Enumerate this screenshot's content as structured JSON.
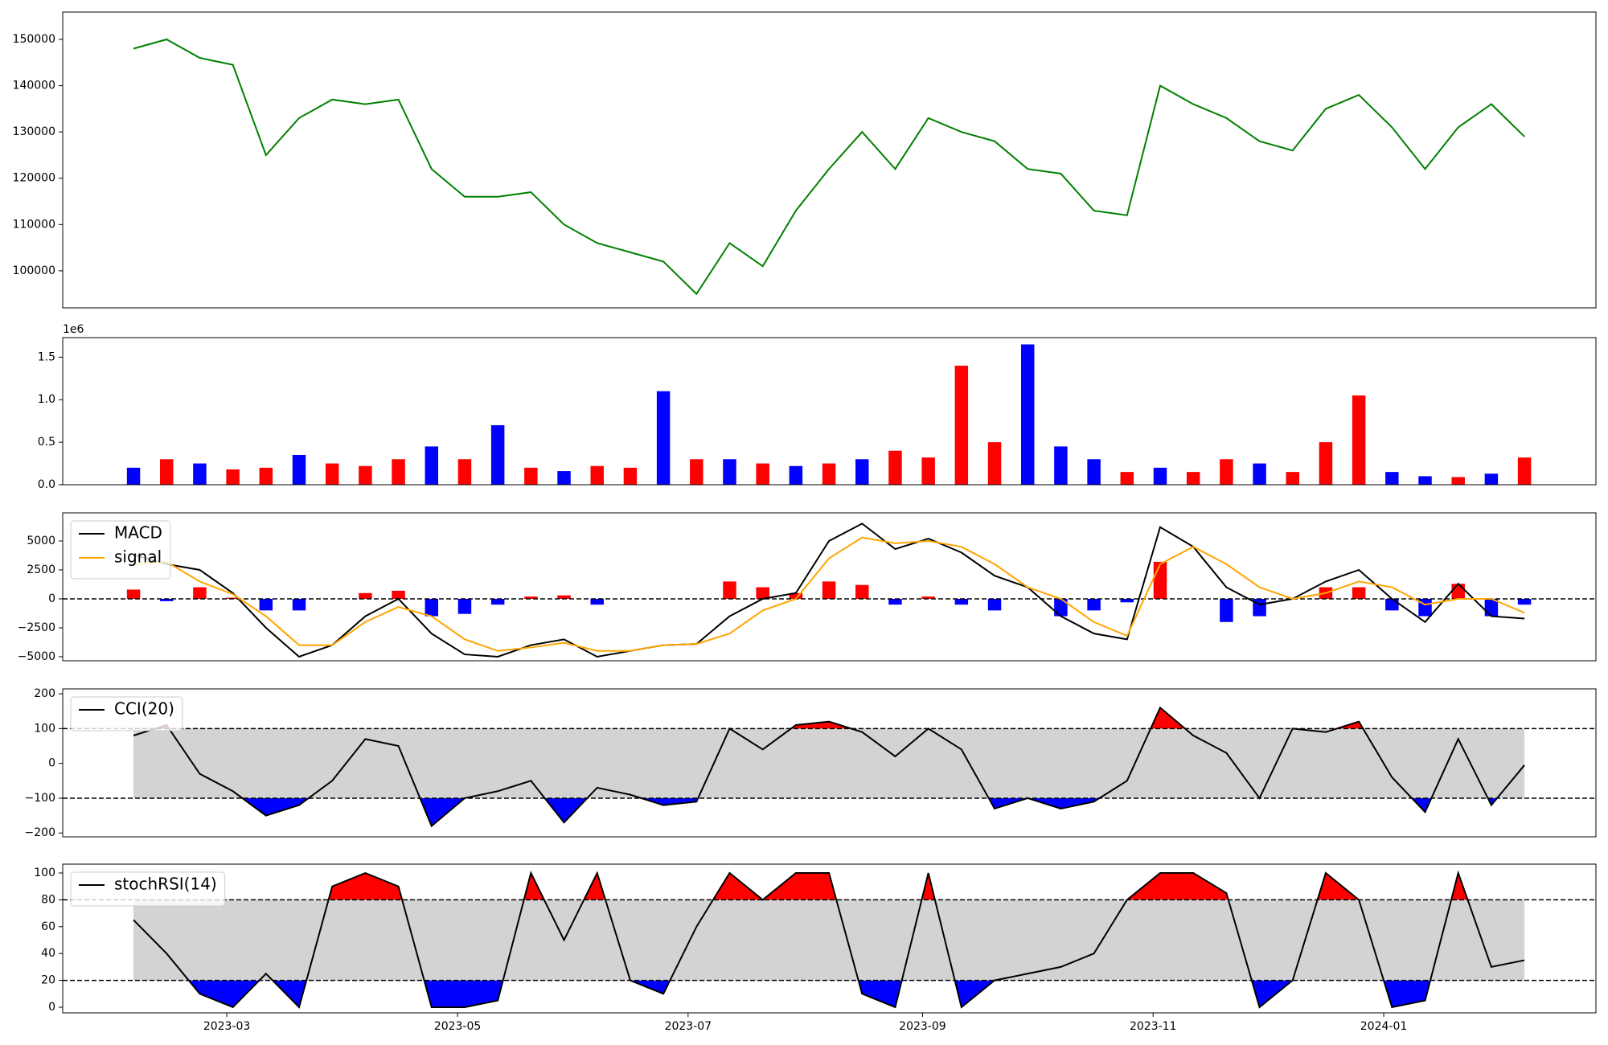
{
  "chart_data": [
    {
      "type": "line",
      "x": [
        2023.094,
        2023.118,
        2023.142,
        2023.166,
        2023.19,
        2023.214,
        2023.238,
        2023.262,
        2023.286,
        2023.31,
        2023.334,
        2023.358,
        2023.382,
        2023.406,
        2023.43,
        2023.454,
        2023.478,
        2023.502,
        2023.526,
        2023.55,
        2023.574,
        2023.598,
        2023.622,
        2023.646,
        2023.67,
        2023.694,
        2023.718,
        2023.742,
        2023.766,
        2023.79,
        2023.814,
        2023.838,
        2023.862,
        2023.886,
        2023.91,
        2023.934,
        2023.958,
        2023.982,
        2024.006,
        2024.03,
        2024.054,
        2024.078,
        2024.102
      ],
      "series": [
        {
          "color": "#008000",
          "values": [
            148000,
            150000,
            146000,
            144500,
            125000,
            133000,
            137000,
            136000,
            137000,
            122000,
            116000,
            116000,
            117000,
            110000,
            106000,
            104000,
            102000,
            95000,
            106000,
            101000,
            113000,
            122000,
            130000,
            122000,
            133000,
            130000,
            128000,
            122000,
            121000,
            113000,
            112000,
            140000,
            136000,
            133000,
            128000,
            126000,
            135000,
            138000,
            131000,
            122000,
            131000,
            136000,
            129000
          ]
        }
      ],
      "xlim": [
        2023.0427,
        2024.1538
      ],
      "ylim": [
        92000,
        155900
      ],
      "yticks": [
        100000,
        110000,
        120000,
        130000,
        140000,
        150000
      ]
    },
    {
      "type": "bar",
      "x": [
        2023.094,
        2023.118,
        2023.142,
        2023.166,
        2023.19,
        2023.214,
        2023.238,
        2023.262,
        2023.286,
        2023.31,
        2023.334,
        2023.358,
        2023.382,
        2023.406,
        2023.43,
        2023.454,
        2023.478,
        2023.502,
        2023.526,
        2023.55,
        2023.574,
        2023.598,
        2023.622,
        2023.646,
        2023.67,
        2023.694,
        2023.718,
        2023.742,
        2023.766,
        2023.79,
        2023.814,
        2023.838,
        2023.862,
        2023.886,
        2023.91,
        2023.934,
        2023.958,
        2023.982,
        2024.006,
        2024.03,
        2024.054,
        2024.078,
        2024.102
      ],
      "values": [
        200000,
        300000,
        250000,
        180000,
        200000,
        350000,
        250000,
        220000,
        300000,
        450000,
        300000,
        700000,
        200000,
        160000,
        220000,
        200000,
        1100000,
        300000,
        300000,
        250000,
        220000,
        250000,
        300000,
        400000,
        320000,
        1400000,
        500000,
        1650000,
        450000,
        300000,
        150000,
        200000,
        150000,
        300000,
        250000,
        150000,
        500000,
        1050000,
        150000,
        100000,
        90000,
        130000,
        320000
      ],
      "colors": [
        "blue",
        "red",
        "blue",
        "red",
        "red",
        "blue",
        "red",
        "red",
        "red",
        "blue",
        "red",
        "blue",
        "red",
        "blue",
        "red",
        "red",
        "blue",
        "red",
        "blue",
        "red",
        "blue",
        "red",
        "blue",
        "red",
        "red",
        "red",
        "red",
        "blue",
        "blue",
        "blue",
        "red",
        "blue",
        "red",
        "red",
        "blue",
        "red",
        "red",
        "red",
        "blue",
        "blue",
        "red",
        "blue",
        "red"
      ],
      "offset_label": "1e6",
      "xlim": [
        2023.0427,
        2024.1538
      ],
      "ylim": [
        0,
        1730000
      ],
      "yticks": [
        {
          "value": 0,
          "label": "0.0"
        },
        {
          "value": 500000,
          "label": "0.5"
        },
        {
          "value": 1000000,
          "label": "1.0"
        },
        {
          "value": 1500000,
          "label": "1.5"
        }
      ]
    },
    {
      "type": "line",
      "x": [
        2023.094,
        2023.118,
        2023.142,
        2023.166,
        2023.19,
        2023.214,
        2023.238,
        2023.262,
        2023.286,
        2023.31,
        2023.334,
        2023.358,
        2023.382,
        2023.406,
        2023.43,
        2023.454,
        2023.478,
        2023.502,
        2023.526,
        2023.55,
        2023.574,
        2023.598,
        2023.622,
        2023.646,
        2023.67,
        2023.694,
        2023.718,
        2023.742,
        2023.766,
        2023.79,
        2023.814,
        2023.838,
        2023.862,
        2023.886,
        2023.91,
        2023.934,
        2023.958,
        2023.982,
        2024.006,
        2024.03,
        2024.054,
        2024.078,
        2024.102
      ],
      "series": [
        {
          "name": "MACD",
          "color": "black",
          "values": [
            3800,
            3000,
            2500,
            500,
            -2500,
            -5000,
            -4000,
            -1500,
            0,
            -3000,
            -4800,
            -5000,
            -4000,
            -3500,
            -5000,
            -4500,
            -4000,
            -3900,
            -1500,
            0,
            500,
            5000,
            6500,
            4300,
            5200,
            4000,
            2000,
            1000,
            -1500,
            -3000,
            -3500,
            6200,
            4500,
            1000,
            -500,
            0,
            1500,
            2500,
            0,
            -2000,
            1300,
            -1500,
            -1700
          ]
        },
        {
          "name": "signal",
          "color": "orange",
          "values": [
            3000,
            3200,
            1500,
            400,
            -1500,
            -4000,
            -4000,
            -2000,
            -700,
            -1500,
            -3500,
            -4500,
            -4200,
            -3800,
            -4500,
            -4500,
            -4000,
            -3900,
            -3000,
            -1000,
            0,
            3500,
            5300,
            4800,
            5000,
            4500,
            3000,
            1000,
            0,
            -2000,
            -3200,
            3000,
            4500,
            3000,
            1000,
            0,
            500,
            1500,
            1000,
            -500,
            0,
            0,
            -1200
          ]
        }
      ],
      "histogram": {
        "values": [
          800,
          -200,
          1000,
          100,
          -1000,
          -1000,
          0,
          500,
          700,
          -1500,
          -1300,
          -500,
          200,
          300,
          -500,
          0,
          0,
          0,
          1500,
          1000,
          500,
          1500,
          1200,
          -500,
          200,
          -500,
          -1000,
          0,
          -1500,
          -1000,
          -300,
          3200,
          0,
          -2000,
          -1500,
          0,
          1000,
          1000,
          -1000,
          -1500,
          1300,
          -1500,
          -500
        ],
        "pos_color": "red",
        "neg_color": "blue"
      },
      "hlines": [
        0
      ],
      "legend": "upper left",
      "xlim": [
        2023.0427,
        2024.1538
      ],
      "ylim": [
        -5350,
        7430
      ],
      "yticks": [
        {
          "value": -5000,
          "label": "−5000"
        },
        {
          "value": -2500,
          "label": "−2500"
        },
        0,
        2500,
        5000
      ]
    },
    {
      "type": "line",
      "x": [
        2023.094,
        2023.118,
        2023.142,
        2023.166,
        2023.19,
        2023.214,
        2023.238,
        2023.262,
        2023.286,
        2023.31,
        2023.334,
        2023.358,
        2023.382,
        2023.406,
        2023.43,
        2023.454,
        2023.478,
        2023.502,
        2023.526,
        2023.55,
        2023.574,
        2023.598,
        2023.622,
        2023.646,
        2023.67,
        2023.694,
        2023.718,
        2023.742,
        2023.766,
        2023.79,
        2023.814,
        2023.838,
        2023.862,
        2023.886,
        2023.91,
        2023.934,
        2023.958,
        2023.982,
        2024.006,
        2024.03,
        2024.054,
        2024.078,
        2024.102
      ],
      "series": [
        {
          "name": "CCI(20)",
          "color": "black",
          "values": [
            80,
            110,
            -30,
            -80,
            -150,
            -120,
            -50,
            70,
            50,
            -180,
            -100,
            -80,
            -50,
            -170,
            -70,
            -90,
            -120,
            -110,
            100,
            40,
            110,
            120,
            90,
            20,
            100,
            40,
            -130,
            -100,
            -130,
            -110,
            -50,
            160,
            80,
            30,
            -100,
            100,
            90,
            120,
            -40,
            -140,
            70,
            -120,
            -5
          ]
        }
      ],
      "upper": 100,
      "lower": -100,
      "upper_color": "red",
      "lower_color": "blue",
      "band_color": "lightgray",
      "legend": "upper left",
      "xlim": [
        2023.0427,
        2024.1538
      ],
      "ylim": [
        -211,
        214
      ],
      "yticks": [
        {
          "value": -200,
          "label": "−200"
        },
        {
          "value": -100,
          "label": "−100"
        },
        0,
        100,
        200
      ]
    },
    {
      "type": "line",
      "x": [
        2023.094,
        2023.118,
        2023.142,
        2023.166,
        2023.19,
        2023.214,
        2023.238,
        2023.262,
        2023.286,
        2023.31,
        2023.334,
        2023.358,
        2023.382,
        2023.406,
        2023.43,
        2023.454,
        2023.478,
        2023.502,
        2023.526,
        2023.55,
        2023.574,
        2023.598,
        2023.622,
        2023.646,
        2023.67,
        2023.694,
        2023.718,
        2023.742,
        2023.766,
        2023.79,
        2023.814,
        2023.838,
        2023.862,
        2023.886,
        2023.91,
        2023.934,
        2023.958,
        2023.982,
        2024.006,
        2024.03,
        2024.054,
        2024.078,
        2024.102
      ],
      "series": [
        {
          "name": "stochRSI(14)",
          "color": "black",
          "values": [
            65,
            40,
            10,
            0,
            25,
            0,
            90,
            100,
            90,
            0,
            0,
            5,
            100,
            50,
            100,
            20,
            10,
            60,
            100,
            80,
            100,
            100,
            10,
            0,
            100,
            0,
            20,
            25,
            30,
            40,
            80,
            100,
            100,
            85,
            0,
            20,
            100,
            80,
            0,
            5,
            100,
            30,
            35
          ]
        }
      ],
      "upper": 80,
      "lower": 20,
      "upper_color": "red",
      "lower_color": "blue",
      "band_color": "lightgray",
      "legend": "upper left",
      "xlim": [
        2023.0427,
        2024.1538
      ],
      "ylim": [
        -4.2,
        106.6
      ],
      "yticks": [
        0,
        20,
        40,
        60,
        80,
        100
      ],
      "xticks": [
        {
          "value": 2023.1616,
          "label": "2023-03"
        },
        {
          "value": 2023.3288,
          "label": "2023-05"
        },
        {
          "value": 2023.4959,
          "label": "2023-07"
        },
        {
          "value": 2023.6658,
          "label": "2023-09"
        },
        {
          "value": 2023.8329,
          "label": "2023-11"
        },
        {
          "value": 2024.0,
          "label": "2024-01"
        }
      ]
    }
  ]
}
